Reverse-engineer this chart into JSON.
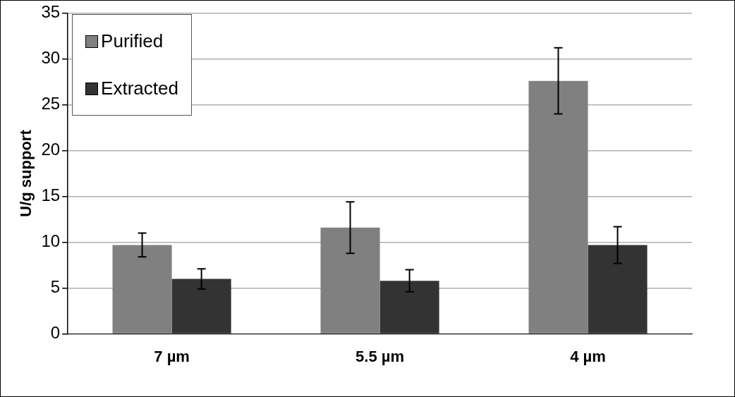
{
  "chart_data": {
    "type": "bar",
    "ylabel": "U/g support",
    "categories": [
      "7 µm",
      "5.5 µm",
      "4 µm"
    ],
    "series": [
      {
        "name": "Purified",
        "color": "#808080",
        "values": [
          9.7,
          11.6,
          27.6
        ],
        "errors": [
          1.3,
          2.8,
          3.6
        ]
      },
      {
        "name": "Extracted",
        "color": "#333333",
        "values": [
          6.0,
          5.8,
          9.7
        ],
        "errors": [
          1.1,
          1.2,
          2.0
        ]
      }
    ],
    "ylim": [
      0,
      35
    ],
    "yticks": [
      0,
      5,
      10,
      15,
      20,
      25,
      30,
      35
    ],
    "grid": "y",
    "legend": "top left"
  }
}
